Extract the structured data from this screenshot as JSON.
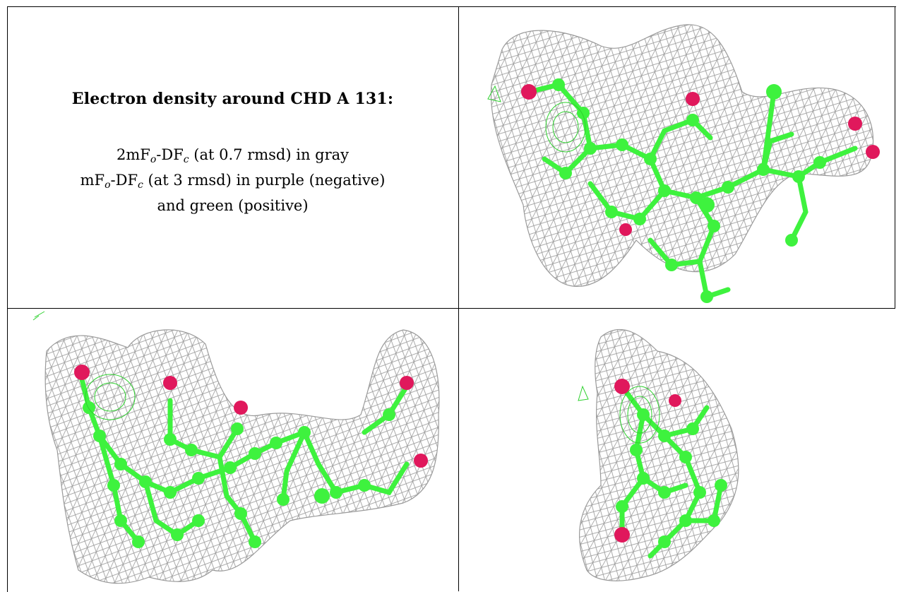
{
  "caption": {
    "title": "Electron density around CHD A 131:",
    "line1_prefix": "2mF",
    "line1_sub1": "o",
    "line1_mid": "-DF",
    "line1_sub2": "c",
    "line1_suffix": " (at 0.7 rmsd) in gray",
    "line2_prefix": "mF",
    "line2_sub1": "o",
    "line2_mid": "-DF",
    "line2_sub2": "c",
    "line2_suffix": " (at 3 rmsd) in purple (negative)",
    "line3": "and green (positive)"
  },
  "colors": {
    "mesh": "#9a9a9a",
    "carbon": "#3ef23e",
    "oxygen": "#e0185c",
    "positive_density": "#2ed12e",
    "border": "#000000"
  },
  "panels": [
    {
      "name": "view-top-right",
      "description_icon": "molecule-density-view"
    },
    {
      "name": "view-bottom-left",
      "description_icon": "molecule-density-view"
    },
    {
      "name": "view-bottom-right",
      "description_icon": "molecule-density-view"
    }
  ]
}
